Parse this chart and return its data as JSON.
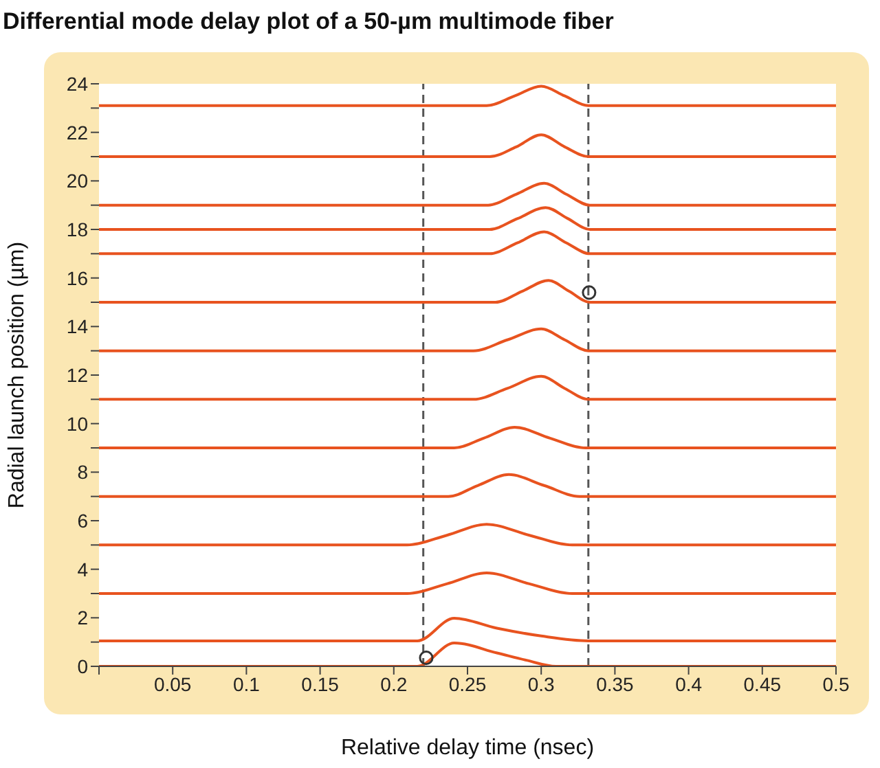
{
  "chart_data": {
    "type": "line",
    "title": "Differential mode delay plot of a 50-µm multimode fiber",
    "xlabel": "Relative delay time (nsec)",
    "ylabel": "Radial launch position (µm)",
    "xlim": [
      0,
      0.5
    ],
    "xticks": [
      {
        "value": 0,
        "label": null
      },
      0.05,
      0.1,
      0.15,
      0.2,
      0.25,
      0.3,
      0.35,
      0.4,
      0.45,
      0.5
    ],
    "ylim": [
      0,
      24
    ],
    "yticks": [
      0,
      {
        "value": 1,
        "label": null
      },
      2,
      {
        "value": 3,
        "label": null
      },
      4,
      {
        "value": 5,
        "label": null
      },
      6,
      {
        "value": 7,
        "label": null
      },
      8,
      {
        "value": 9,
        "label": null
      },
      10,
      {
        "value": 11,
        "label": null
      },
      12,
      {
        "value": 13,
        "label": null
      },
      14,
      {
        "value": 15,
        "label": null
      },
      16,
      {
        "value": 17,
        "label": null
      },
      18,
      {
        "value": 19,
        "label": null
      },
      20,
      {
        "value": 21,
        "label": null
      },
      22,
      {
        "value": 23,
        "label": null
      },
      24
    ],
    "grid": false,
    "line_style": "solid",
    "marker": "none",
    "ref_lines": [
      {
        "axis": "x",
        "value": 0.22,
        "color": "#555555",
        "line_style": "dashed"
      },
      {
        "axis": "x",
        "value": 0.332,
        "color": "#555555",
        "line_style": "dashed"
      }
    ],
    "series": [
      {
        "color": "#e8531f",
        "x": [
          0,
          0.263,
          0.282,
          0.3,
          0.316,
          0.332,
          0.5
        ],
        "values": [
          23.1,
          23.1,
          23.5,
          23.9,
          23.5,
          23.1,
          23.1
        ]
      },
      {
        "color": "#e8531f",
        "x": [
          0,
          0.265,
          0.283,
          0.3,
          0.316,
          0.332,
          0.5
        ],
        "values": [
          21,
          21,
          21.4,
          21.9,
          21.4,
          21,
          21
        ]
      },
      {
        "color": "#e8531f",
        "x": [
          0,
          0.264,
          0.283,
          0.302,
          0.317,
          0.333,
          0.5
        ],
        "values": [
          19,
          19,
          19.45,
          19.9,
          19.45,
          19,
          19
        ]
      },
      {
        "color": "#e8531f",
        "x": [
          0,
          0.265,
          0.284,
          0.303,
          0.318,
          0.333,
          0.5
        ],
        "values": [
          18,
          18,
          18.45,
          18.9,
          18.45,
          18,
          18
        ]
      },
      {
        "color": "#e8531f",
        "x": [
          0,
          0.265,
          0.284,
          0.302,
          0.317,
          0.333,
          0.5
        ],
        "values": [
          17,
          17,
          17.45,
          17.9,
          17.45,
          17,
          17
        ]
      },
      {
        "color": "#e8531f",
        "x": [
          0,
          0.269,
          0.287,
          0.305,
          0.319,
          0.333,
          0.5
        ],
        "values": [
          15,
          15,
          15.45,
          15.9,
          15.45,
          15,
          15
        ]
      },
      {
        "color": "#e8531f",
        "x": [
          0,
          0.254,
          0.277,
          0.3,
          0.316,
          0.332,
          0.5
        ],
        "values": [
          13,
          13,
          13.45,
          13.9,
          13.45,
          13,
          13
        ]
      },
      {
        "color": "#e8531f",
        "x": [
          0,
          0.254,
          0.277,
          0.3,
          0.316,
          0.332,
          0.5
        ],
        "values": [
          11,
          11,
          11.45,
          11.95,
          11.45,
          11,
          11
        ]
      },
      {
        "color": "#e8531f",
        "x": [
          0,
          0.241,
          0.261,
          0.282,
          0.306,
          0.33,
          0.5
        ],
        "values": [
          9,
          9,
          9.4,
          9.85,
          9.4,
          9,
          9
        ]
      },
      {
        "color": "#e8531f",
        "x": [
          0,
          0.237,
          0.257,
          0.278,
          0.302,
          0.326,
          0.5
        ],
        "values": [
          7,
          7,
          7.45,
          7.9,
          7.45,
          7,
          7
        ]
      },
      {
        "color": "#e8531f",
        "x": [
          0,
          0.209,
          0.236,
          0.263,
          0.292,
          0.321,
          0.5
        ],
        "values": [
          5,
          5,
          5.4,
          5.85,
          5.4,
          5,
          5
        ]
      },
      {
        "color": "#e8531f",
        "x": [
          0,
          0.209,
          0.236,
          0.263,
          0.292,
          0.321,
          0.5
        ],
        "values": [
          3,
          3,
          3.4,
          3.85,
          3.4,
          3,
          3
        ]
      },
      {
        "color": "#e8531f",
        "x": [
          0,
          0.216,
          0.241,
          0.27,
          0.3,
          0.332,
          0.5
        ],
        "values": [
          1.05,
          1.05,
          1.98,
          1.57,
          1.25,
          1.05,
          1.05
        ]
      },
      {
        "color": "#e8531f",
        "x": [
          0,
          0.216,
          0.241,
          0.27,
          0.29,
          0.31,
          0.5
        ],
        "values": [
          0,
          0,
          0.96,
          0.55,
          0.25,
          0,
          0
        ]
      },
      {
        "type": "scatter",
        "marker": "circle",
        "color": "#333333",
        "x": [
          0.222,
          0.3325
        ],
        "values": [
          0.35,
          15.4
        ]
      }
    ]
  }
}
